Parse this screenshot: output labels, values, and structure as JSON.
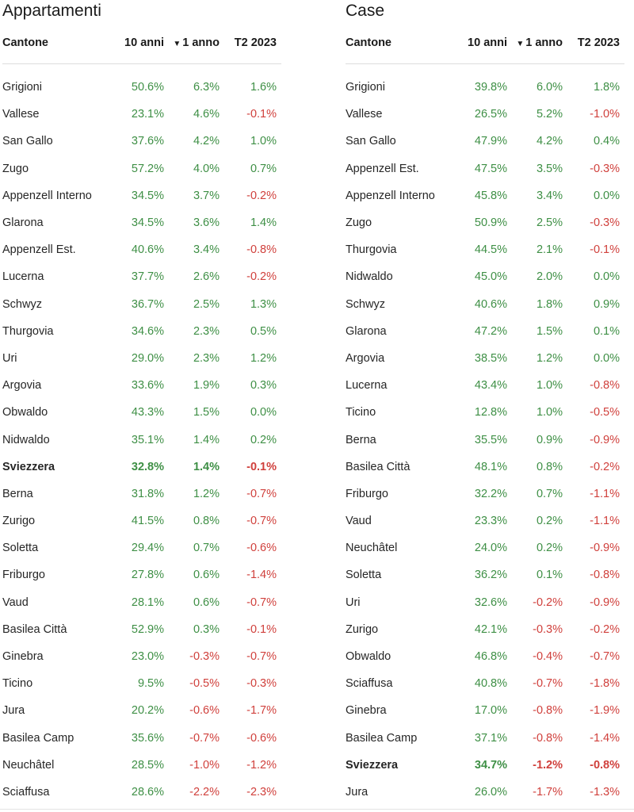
{
  "tables": [
    {
      "title": "Appartamenti",
      "headers": {
        "name": "Cantone",
        "ten": "10 anni",
        "one": "1 anno",
        "q": "T2 2023",
        "sort_icon": "▼"
      },
      "rows": [
        {
          "name": "Grigioni",
          "ten": "50.6%",
          "one": "6.3%",
          "q": "1.6%"
        },
        {
          "name": "Vallese",
          "ten": "23.1%",
          "one": "4.6%",
          "q": "-0.1%"
        },
        {
          "name": "San Gallo",
          "ten": "37.6%",
          "one": "4.2%",
          "q": "1.0%"
        },
        {
          "name": "Zugo",
          "ten": "57.2%",
          "one": "4.0%",
          "q": "0.7%"
        },
        {
          "name": "Appenzell Interno",
          "ten": "34.5%",
          "one": "3.7%",
          "q": "-0.2%"
        },
        {
          "name": "Glarona",
          "ten": "34.5%",
          "one": "3.6%",
          "q": "1.4%"
        },
        {
          "name": "Appenzell Est.",
          "ten": "40.6%",
          "one": "3.4%",
          "q": "-0.8%"
        },
        {
          "name": "Lucerna",
          "ten": "37.7%",
          "one": "2.6%",
          "q": "-0.2%"
        },
        {
          "name": "Schwyz",
          "ten": "36.7%",
          "one": "2.5%",
          "q": "1.3%"
        },
        {
          "name": "Thurgovia",
          "ten": "34.6%",
          "one": "2.3%",
          "q": "0.5%"
        },
        {
          "name": "Uri",
          "ten": "29.0%",
          "one": "2.3%",
          "q": "1.2%"
        },
        {
          "name": "Argovia",
          "ten": "33.6%",
          "one": "1.9%",
          "q": "0.3%"
        },
        {
          "name": "Obwaldo",
          "ten": "43.3%",
          "one": "1.5%",
          "q": "0.0%"
        },
        {
          "name": "Nidwaldo",
          "ten": "35.1%",
          "one": "1.4%",
          "q": "0.2%"
        },
        {
          "name": "Sviezzera",
          "ten": "32.8%",
          "one": "1.4%",
          "q": "-0.1%",
          "bold": true
        },
        {
          "name": "Berna",
          "ten": "31.8%",
          "one": "1.2%",
          "q": "-0.7%"
        },
        {
          "name": "Zurigo",
          "ten": "41.5%",
          "one": "0.8%",
          "q": "-0.7%"
        },
        {
          "name": "Soletta",
          "ten": "29.4%",
          "one": "0.7%",
          "q": "-0.6%"
        },
        {
          "name": "Friburgo",
          "ten": "27.8%",
          "one": "0.6%",
          "q": "-1.4%"
        },
        {
          "name": "Vaud",
          "ten": "28.1%",
          "one": "0.6%",
          "q": "-0.7%"
        },
        {
          "name": "Basilea Città",
          "ten": "52.9%",
          "one": "0.3%",
          "q": "-0.1%"
        },
        {
          "name": "Ginebra",
          "ten": "23.0%",
          "one": "-0.3%",
          "q": "-0.7%"
        },
        {
          "name": "Ticino",
          "ten": "9.5%",
          "one": "-0.5%",
          "q": "-0.3%"
        },
        {
          "name": "Jura",
          "ten": "20.2%",
          "one": "-0.6%",
          "q": "-1.7%"
        },
        {
          "name": "Basilea Camp",
          "ten": "35.6%",
          "one": "-0.7%",
          "q": "-0.6%"
        },
        {
          "name": "Neuchâtel",
          "ten": "28.5%",
          "one": "-1.0%",
          "q": "-1.2%"
        },
        {
          "name": "Sciaffusa",
          "ten": "28.6%",
          "one": "-2.2%",
          "q": "-2.3%"
        }
      ]
    },
    {
      "title": "Case",
      "headers": {
        "name": "Cantone",
        "ten": "10 anni",
        "one": "1 anno",
        "q": "T2 2023",
        "sort_icon": "▼"
      },
      "rows": [
        {
          "name": "Grigioni",
          "ten": "39.8%",
          "one": "6.0%",
          "q": "1.8%"
        },
        {
          "name": "Vallese",
          "ten": "26.5%",
          "one": "5.2%",
          "q": "-1.0%"
        },
        {
          "name": "San Gallo",
          "ten": "47.9%",
          "one": "4.2%",
          "q": "0.4%"
        },
        {
          "name": "Appenzell Est.",
          "ten": "47.5%",
          "one": "3.5%",
          "q": "-0.3%"
        },
        {
          "name": "Appenzell Interno",
          "ten": "45.8%",
          "one": "3.4%",
          "q": "0.0%"
        },
        {
          "name": "Zugo",
          "ten": "50.9%",
          "one": "2.5%",
          "q": "-0.3%"
        },
        {
          "name": "Thurgovia",
          "ten": "44.5%",
          "one": "2.1%",
          "q": "-0.1%"
        },
        {
          "name": "Nidwaldo",
          "ten": "45.0%",
          "one": "2.0%",
          "q": "0.0%"
        },
        {
          "name": "Schwyz",
          "ten": "40.6%",
          "one": "1.8%",
          "q": "0.9%"
        },
        {
          "name": "Glarona",
          "ten": "47.2%",
          "one": "1.5%",
          "q": "0.1%"
        },
        {
          "name": "Argovia",
          "ten": "38.5%",
          "one": "1.2%",
          "q": "0.0%"
        },
        {
          "name": "Lucerna",
          "ten": "43.4%",
          "one": "1.0%",
          "q": "-0.8%"
        },
        {
          "name": "Ticino",
          "ten": "12.8%",
          "one": "1.0%",
          "q": "-0.5%"
        },
        {
          "name": "Berna",
          "ten": "35.5%",
          "one": "0.9%",
          "q": "-0.9%"
        },
        {
          "name": "Basilea Città",
          "ten": "48.1%",
          "one": "0.8%",
          "q": "-0.2%"
        },
        {
          "name": "Friburgo",
          "ten": "32.2%",
          "one": "0.7%",
          "q": "-1.1%"
        },
        {
          "name": "Vaud",
          "ten": "23.3%",
          "one": "0.2%",
          "q": "-1.1%"
        },
        {
          "name": "Neuchâtel",
          "ten": "24.0%",
          "one": "0.2%",
          "q": "-0.9%"
        },
        {
          "name": "Soletta",
          "ten": "36.2%",
          "one": "0.1%",
          "q": "-0.8%"
        },
        {
          "name": "Uri",
          "ten": "32.6%",
          "one": "-0.2%",
          "q": "-0.9%"
        },
        {
          "name": "Zurigo",
          "ten": "42.1%",
          "one": "-0.3%",
          "q": "-0.2%"
        },
        {
          "name": "Obwaldo",
          "ten": "46.8%",
          "one": "-0.4%",
          "q": "-0.7%"
        },
        {
          "name": "Sciaffusa",
          "ten": "40.8%",
          "one": "-0.7%",
          "q": "-1.8%"
        },
        {
          "name": "Ginebra",
          "ten": "17.0%",
          "one": "-0.8%",
          "q": "-1.9%"
        },
        {
          "name": "Basilea Camp",
          "ten": "37.1%",
          "one": "-0.8%",
          "q": "-1.4%"
        },
        {
          "name": "Sviezzera",
          "ten": "34.7%",
          "one": "-1.2%",
          "q": "-0.8%",
          "bold": true
        },
        {
          "name": "Jura",
          "ten": "26.0%",
          "one": "-1.7%",
          "q": "-1.3%"
        }
      ]
    }
  ],
  "colors": {
    "positive": "#3e8f45",
    "negative": "#d0403c"
  }
}
